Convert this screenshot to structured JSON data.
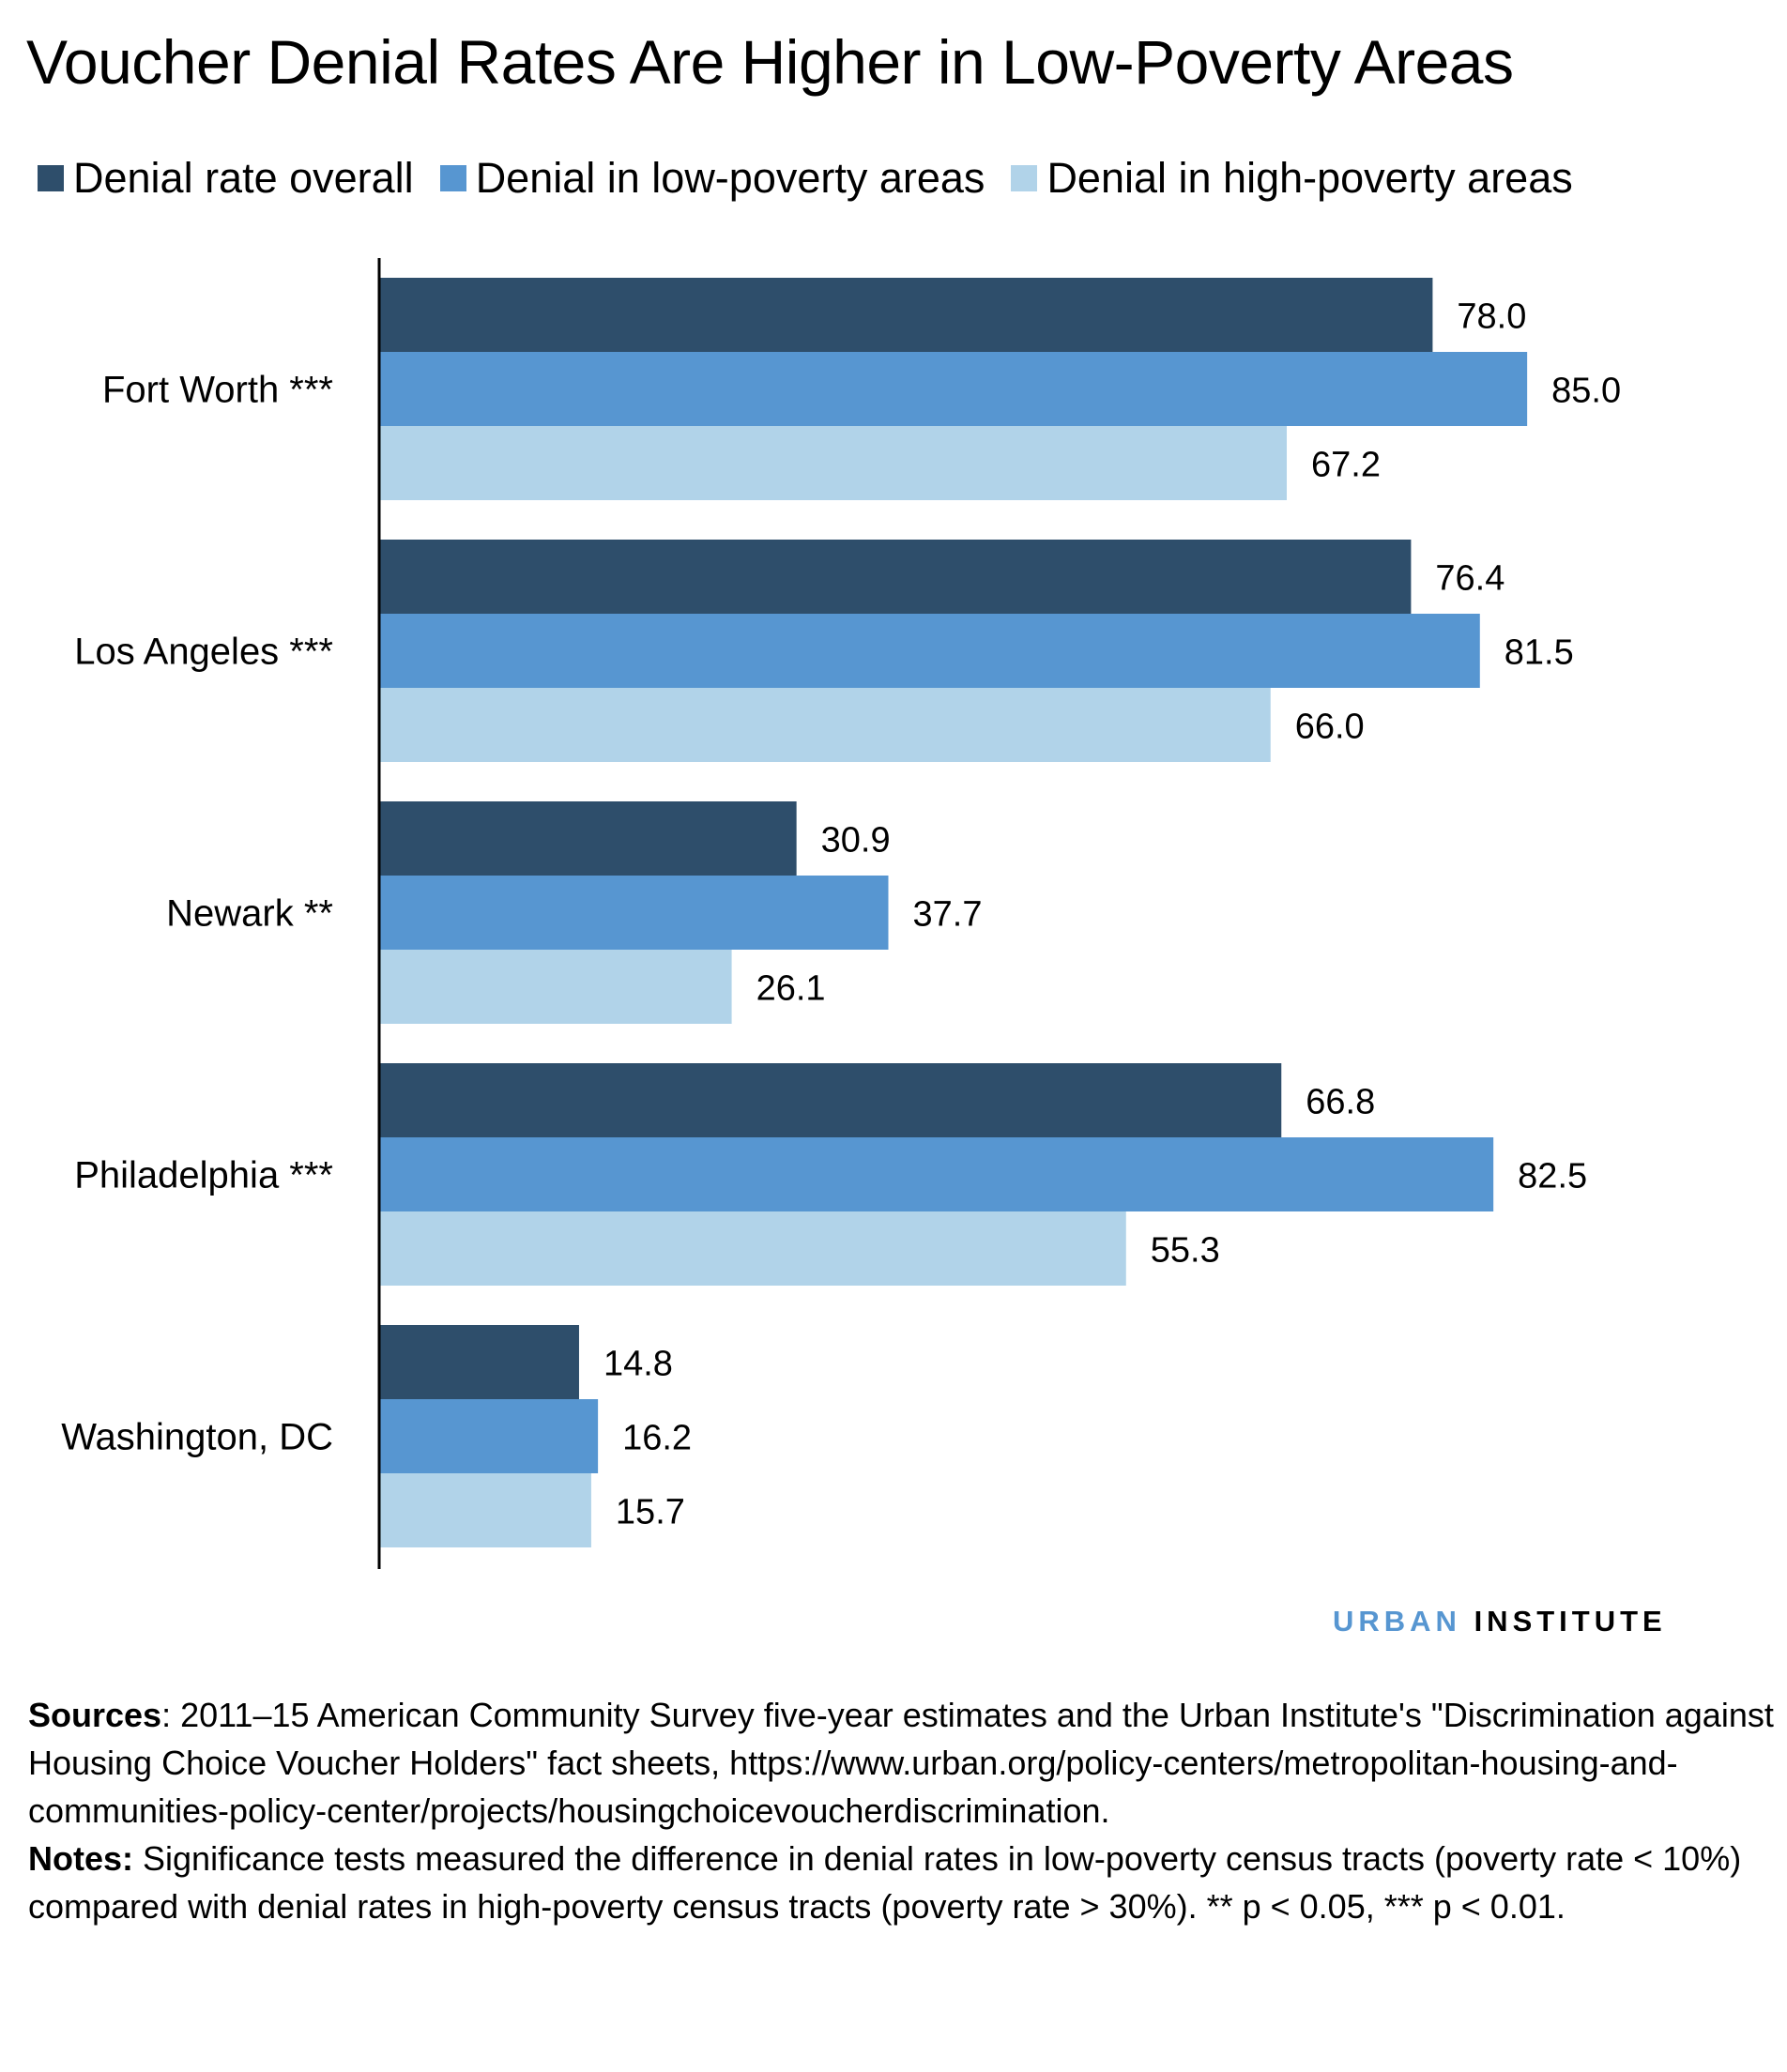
{
  "title": "Voucher Denial Rates Are Higher in Low-Poverty Areas",
  "chart_data": {
    "type": "bar",
    "orientation": "horizontal",
    "categories": [
      "Fort Worth ***",
      "Los Angeles ***",
      "Newark **",
      "Philadelphia ***",
      "Washington, DC"
    ],
    "series": [
      {
        "name": "Denial rate overall",
        "color": "#2e4e6b",
        "values": [
          78.0,
          76.4,
          30.9,
          66.8,
          14.8
        ]
      },
      {
        "name": "Denial in low-poverty areas",
        "color": "#5796d1",
        "values": [
          85.0,
          81.5,
          37.7,
          82.5,
          16.2
        ]
      },
      {
        "name": "Denial in high-poverty areas",
        "color": "#b1d3e9",
        "values": [
          67.2,
          66.0,
          26.1,
          55.3,
          15.7
        ]
      }
    ],
    "xlim": [
      0,
      100
    ],
    "grid": false,
    "legend": "top",
    "data_labels": true
  },
  "logo": {
    "part1": "URBAN",
    "part2": "INSTITUTE"
  },
  "notes": {
    "sources_label": "Sources",
    "sources_text": ": 2011–15 American Community Survey five-year estimates and the Urban Institute's \"Discrimination against Housing Choice Voucher Holders\" fact sheets, https://www.urban.org/policy-centers/metropolitan-housing-and-communities-policy-center/projects/housingchoicevoucherdiscrimination.",
    "notes_label": "Notes:",
    "notes_text": " Significance tests measured the difference in denial rates in low-poverty census tracts (poverty rate < 10%) compared with denial rates in high-poverty census tracts (poverty rate > 30%). ** p < 0.05, *** p < 0.01."
  }
}
